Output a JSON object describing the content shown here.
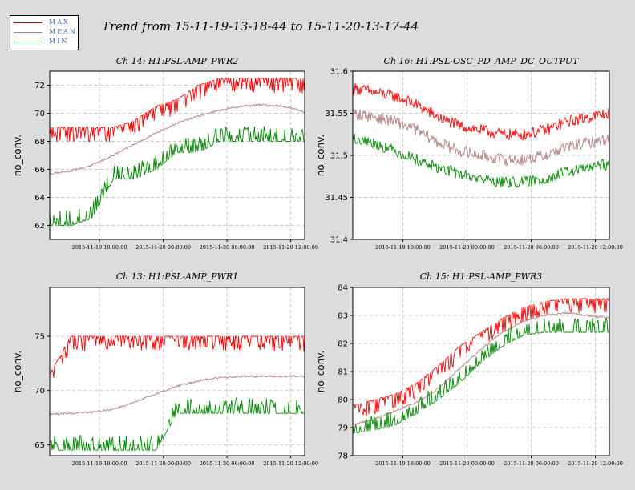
{
  "page_title": "Trend from 15-11-19-13-18-44 to 15-11-20-13-17-44",
  "legend": [
    {
      "label": "MAX",
      "color": "#cc0000"
    },
    {
      "label": "MEAN",
      "color": "#b08080"
    },
    {
      "label": "MIN",
      "color": "#008800"
    }
  ],
  "colors": {
    "max": "#ff0000",
    "mean": "#b88a8a",
    "min": "#008800"
  },
  "chart_data": [
    {
      "type": "line",
      "title": "Ch 14: H1:PSL-AMP_PWR2",
      "ylabel": "no_conv.",
      "xlabel": "",
      "ylim": [
        61,
        73
      ],
      "yticks": [
        "62",
        "64",
        "66",
        "68",
        "70",
        "72"
      ],
      "yticks_values": [
        62,
        64,
        66,
        68,
        70,
        72
      ],
      "xticks": [
        "2015-11-19 18:00:00",
        "2015-11-20 00:00:00",
        "2015-11-20 06:00:00",
        "2015-11-20 12:00:00"
      ],
      "xticks_hours": [
        4.69,
        10.69,
        16.69,
        22.69
      ],
      "x_hours_range": [
        0,
        24
      ],
      "grid": true,
      "series": [
        {
          "name": "MAX",
          "x_hours": [
            0,
            2,
            4,
            6,
            8,
            10,
            12,
            14,
            16,
            18,
            20,
            22,
            24
          ],
          "values": [
            69,
            69,
            69,
            69,
            69.5,
            70.5,
            71,
            72,
            72.5,
            72.5,
            72.5,
            72.5,
            72.5
          ]
        },
        {
          "name": "MEAN",
          "x_hours": [
            0,
            2,
            4,
            6,
            8,
            10,
            12,
            14,
            16,
            18,
            20,
            22,
            24
          ],
          "values": [
            65.7,
            65.9,
            66.3,
            67.0,
            67.8,
            68.6,
            69.3,
            69.8,
            70.2,
            70.5,
            70.6,
            70.5,
            70.1
          ]
        },
        {
          "name": "MIN",
          "x_hours": [
            0,
            2,
            4,
            6,
            8,
            10,
            12,
            14,
            16,
            18,
            20,
            22,
            24
          ],
          "values": [
            62,
            62,
            62.5,
            65.3,
            65.3,
            66,
            67.2,
            67.2,
            68,
            68,
            68,
            68,
            68
          ]
        }
      ]
    },
    {
      "type": "line",
      "title": "Ch 16: H1:PSL-OSC_PD_AMP_DC_OUTPUT",
      "ylabel": "no_conv.",
      "xlabel": "",
      "ylim": [
        31.4,
        31.6
      ],
      "yticks": [
        "31.4",
        "31.45",
        "31.5",
        "31.55",
        "31.6"
      ],
      "yticks_values": [
        31.4,
        31.45,
        31.5,
        31.55,
        31.6
      ],
      "xticks": [
        "2015-11-19 18:00:00",
        "2015-11-20 00:00:00",
        "2015-11-20 06:00:00",
        "2015-11-20 12:00:00"
      ],
      "xticks_hours": [
        4.69,
        10.69,
        16.69,
        22.69
      ],
      "x_hours_range": [
        0,
        24
      ],
      "grid": true,
      "series": [
        {
          "name": "MAX",
          "x_hours": [
            0,
            2,
            4,
            6,
            8,
            10,
            12,
            14,
            16,
            18,
            20,
            22,
            24
          ],
          "values": [
            31.58,
            31.575,
            31.57,
            31.56,
            31.545,
            31.535,
            31.53,
            31.525,
            31.525,
            31.53,
            31.54,
            31.545,
            31.55
          ]
        },
        {
          "name": "MEAN",
          "x_hours": [
            0,
            2,
            4,
            6,
            8,
            10,
            12,
            14,
            16,
            18,
            20,
            22,
            24
          ],
          "values": [
            31.55,
            31.545,
            31.54,
            31.53,
            31.515,
            31.505,
            31.5,
            31.495,
            31.495,
            31.5,
            31.51,
            31.515,
            31.52
          ]
        },
        {
          "name": "MIN",
          "x_hours": [
            0,
            2,
            4,
            6,
            8,
            10,
            12,
            14,
            16,
            18,
            20,
            22,
            24
          ],
          "values": [
            31.52,
            31.515,
            31.505,
            31.495,
            31.485,
            31.478,
            31.472,
            31.468,
            31.468,
            31.472,
            31.48,
            31.485,
            31.49
          ]
        }
      ]
    },
    {
      "type": "line",
      "title": "Ch 13: H1:PSL-AMP_PWR1",
      "ylabel": "no_conv.",
      "xlabel": "",
      "ylim": [
        64,
        79.5
      ],
      "yticks": [
        "65",
        "70",
        "75"
      ],
      "yticks_values": [
        65,
        70,
        75
      ],
      "xticks": [
        "2015-11-19 18:00:00",
        "2015-11-20 00:00:00",
        "2015-11-20 06:00:00",
        "2015-11-20 12:00:00"
      ],
      "xticks_hours": [
        4.69,
        10.69,
        16.69,
        22.69
      ],
      "x_hours_range": [
        0,
        24
      ],
      "grid": true,
      "series": [
        {
          "name": "MAX",
          "x_hours": [
            0,
            2,
            4,
            6,
            8,
            10,
            12,
            14,
            16,
            18,
            20,
            22,
            24
          ],
          "values": [
            71.5,
            75,
            75,
            75,
            75,
            75,
            75,
            75,
            75,
            75,
            75,
            75,
            75
          ]
        },
        {
          "name": "MEAN",
          "x_hours": [
            0,
            2,
            4,
            6,
            8,
            10,
            12,
            14,
            16,
            18,
            20,
            22,
            24
          ],
          "values": [
            67.8,
            67.9,
            68.0,
            68.3,
            68.9,
            69.7,
            70.4,
            70.9,
            71.2,
            71.3,
            71.3,
            71.3,
            71.3
          ]
        },
        {
          "name": "MIN",
          "x_hours": [
            0,
            2,
            4,
            6,
            8,
            10,
            12,
            14,
            16,
            18,
            20,
            22,
            24
          ],
          "values": [
            64.5,
            64.5,
            64.5,
            64.5,
            64.5,
            64.5,
            67.9,
            67.9,
            67.9,
            67.9,
            67.9,
            67.9,
            67.9
          ]
        }
      ]
    },
    {
      "type": "line",
      "title": "Ch 15: H1:PSL-AMP_PWR3",
      "ylabel": "no_conv.",
      "xlabel": "",
      "ylim": [
        78,
        84
      ],
      "yticks": [
        "78",
        "79",
        "80",
        "81",
        "82",
        "83",
        "84"
      ],
      "yticks_values": [
        78,
        79,
        80,
        81,
        82,
        83,
        84
      ],
      "xticks": [
        "2015-11-19 18:00:00",
        "2015-11-20 00:00:00",
        "2015-11-20 06:00:00",
        "2015-11-20 12:00:00"
      ],
      "xticks_hours": [
        4.69,
        10.69,
        16.69,
        22.69
      ],
      "x_hours_range": [
        0,
        24
      ],
      "grid": true,
      "series": [
        {
          "name": "MAX",
          "x_hours": [
            0,
            2,
            4,
            6,
            8,
            10,
            12,
            14,
            16,
            18,
            20,
            22,
            24
          ],
          "values": [
            79.8,
            80.0,
            80.2,
            80.6,
            81.2,
            81.9,
            82.4,
            82.9,
            83.3,
            83.5,
            83.6,
            83.6,
            83.6
          ]
        },
        {
          "name": "MEAN",
          "x_hours": [
            0,
            2,
            4,
            6,
            8,
            10,
            12,
            14,
            16,
            18,
            20,
            22,
            24
          ],
          "values": [
            79.1,
            79.3,
            79.6,
            79.9,
            80.4,
            81.1,
            81.8,
            82.4,
            82.8,
            83.0,
            83.1,
            83.0,
            82.9
          ]
        },
        {
          "name": "MIN",
          "x_hours": [
            0,
            2,
            4,
            6,
            8,
            10,
            12,
            14,
            16,
            18,
            20,
            22,
            24
          ],
          "values": [
            78.8,
            78.9,
            79.1,
            79.5,
            80.0,
            80.6,
            81.3,
            81.9,
            82.3,
            82.4,
            82.4,
            82.4,
            82.4
          ]
        }
      ]
    }
  ]
}
